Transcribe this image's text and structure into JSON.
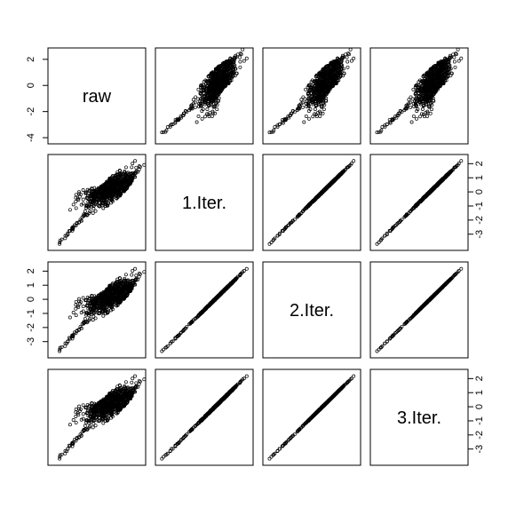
{
  "chart_data": {
    "type": "scatter",
    "kind": "pairs-matrix",
    "variables": [
      "raw",
      "1.Iter.",
      "2.Iter.",
      "3.Iter."
    ],
    "axis_ticks": {
      "raw": [
        "2",
        "0",
        "-2",
        "-4"
      ],
      "1.Iter.": [
        "2",
        "1",
        "0",
        "-1",
        "-2",
        "-3"
      ],
      "2.Iter.": [
        "2",
        "1",
        "0",
        "-1",
        "-2",
        "-3"
      ],
      "3.Iter.": [
        "2",
        "1",
        "0",
        "-1",
        "-2",
        "-3"
      ]
    },
    "axis_tick_values": {
      "raw": [
        2,
        0,
        -2,
        -4
      ],
      "1.Iter.": [
        2,
        1,
        0,
        -1,
        -2,
        -3
      ],
      "2.Iter.": [
        2,
        1,
        0,
        -1,
        -2,
        -3
      ],
      "3.Iter.": [
        2,
        1,
        0,
        -1,
        -2,
        -3
      ]
    },
    "ranges": {
      "raw": [
        -4.2,
        2.6
      ],
      "1.Iter.": [
        -3.9,
        2.4
      ],
      "2.Iter.": [
        -3.9,
        2.4
      ],
      "3.Iter.": [
        -3.9,
        2.4
      ]
    },
    "tick_positions": {
      "1": "left",
      "2": "right",
      "3": "left",
      "4": "right"
    },
    "marker": "open-circle",
    "grid": false,
    "legend": "none",
    "colors": {
      "points": "#000000",
      "frame": "#000000",
      "background": "#ffffff"
    }
  }
}
